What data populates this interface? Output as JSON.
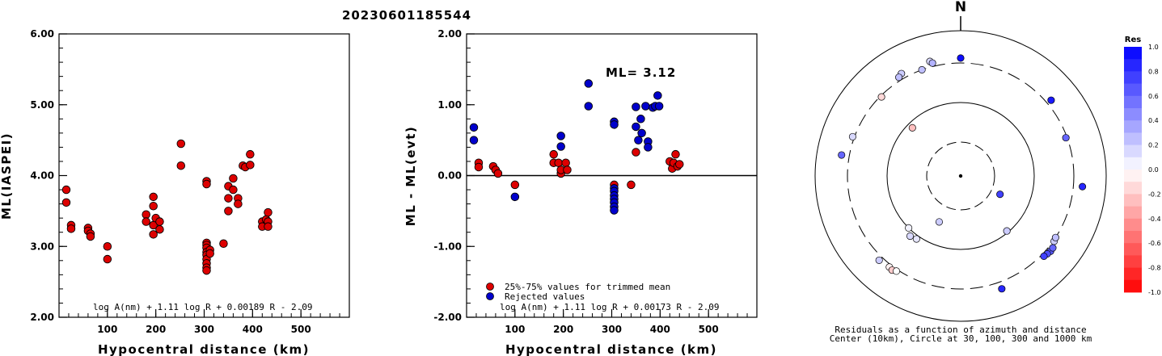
{
  "title": "20230601185544",
  "chart_data": [
    {
      "type": "scatter",
      "panel": "left",
      "xlabel": "Hypocentral distance (km)",
      "ylabel": "ML(IASPEI)",
      "xlim": [
        0,
        600
      ],
      "ylim": [
        2.0,
        6.0
      ],
      "xticks": [
        "100",
        "200",
        "300",
        "400",
        "500"
      ],
      "yticks": [
        "2.00",
        "3.00",
        "4.00",
        "5.00",
        "6.00"
      ],
      "formula": "log A(nm) + 1.11 log R + 0.00189 R - 2.09",
      "marker_color": "#dd0000",
      "points": [
        [
          15,
          3.8
        ],
        [
          15,
          3.62
        ],
        [
          25,
          3.3
        ],
        [
          25,
          3.25
        ],
        [
          60,
          3.26
        ],
        [
          60,
          3.22
        ],
        [
          65,
          3.18
        ],
        [
          65,
          3.14
        ],
        [
          100,
          3.0
        ],
        [
          100,
          2.82
        ],
        [
          180,
          3.45
        ],
        [
          180,
          3.35
        ],
        [
          195,
          3.7
        ],
        [
          195,
          3.57
        ],
        [
          195,
          3.3
        ],
        [
          195,
          3.17
        ],
        [
          200,
          3.4
        ],
        [
          208,
          3.35
        ],
        [
          208,
          3.24
        ],
        [
          252,
          4.45
        ],
        [
          252,
          4.14
        ],
        [
          305,
          3.92
        ],
        [
          305,
          3.88
        ],
        [
          305,
          3.05
        ],
        [
          305,
          3.02
        ],
        [
          305,
          2.98
        ],
        [
          305,
          2.92
        ],
        [
          305,
          2.88
        ],
        [
          305,
          2.82
        ],
        [
          305,
          2.76
        ],
        [
          305,
          2.7
        ],
        [
          305,
          2.66
        ],
        [
          312,
          2.95
        ],
        [
          312,
          2.9
        ],
        [
          340,
          3.04
        ],
        [
          350,
          3.85
        ],
        [
          350,
          3.68
        ],
        [
          350,
          3.5
        ],
        [
          360,
          3.96
        ],
        [
          360,
          3.8
        ],
        [
          370,
          3.68
        ],
        [
          370,
          3.6
        ],
        [
          380,
          4.14
        ],
        [
          385,
          4.12
        ],
        [
          395,
          4.3
        ],
        [
          395,
          4.15
        ],
        [
          420,
          3.35
        ],
        [
          420,
          3.28
        ],
        [
          428,
          3.38
        ],
        [
          432,
          3.48
        ],
        [
          432,
          3.35
        ],
        [
          432,
          3.28
        ]
      ]
    },
    {
      "type": "scatter",
      "panel": "middle",
      "xlabel": "Hypocentral distance (km)",
      "ylabel": "ML - ML(evt)",
      "xlim": [
        0,
        600
      ],
      "ylim": [
        -2.0,
        2.0
      ],
      "xticks": [
        "100",
        "200",
        "300",
        "400",
        "500"
      ],
      "yticks": [
        "-2.00",
        "-1.00",
        "0.00",
        "1.00",
        "2.00"
      ],
      "annotation": "ML= 3.12",
      "formula": "log A(nm) + 1.11 log R + 0.00173 R - 2.09",
      "legend": [
        {
          "label": "25%-75% values for trimmed mean",
          "color": "#dd0000"
        },
        {
          "label": "Rejected values",
          "color": "#0000cc"
        }
      ],
      "series": [
        {
          "name": "25%-75% values for trimmed mean",
          "color": "#dd0000",
          "points": [
            [
              25,
              0.18
            ],
            [
              25,
              0.12
            ],
            [
              55,
              0.13
            ],
            [
              60,
              0.08
            ],
            [
              65,
              0.03
            ],
            [
              100,
              -0.13
            ],
            [
              180,
              0.3
            ],
            [
              180,
              0.18
            ],
            [
              190,
              0.18
            ],
            [
              195,
              0.03
            ],
            [
              195,
              0.08
            ],
            [
              205,
              0.18
            ],
            [
              208,
              0.08
            ],
            [
              305,
              -0.13
            ],
            [
              340,
              -0.13
            ],
            [
              350,
              0.33
            ],
            [
              420,
              0.2
            ],
            [
              425,
              0.1
            ],
            [
              428,
              0.18
            ],
            [
              432,
              0.3
            ],
            [
              436,
              0.13
            ],
            [
              440,
              0.16
            ]
          ]
        },
        {
          "name": "Rejected values",
          "color": "#0000cc",
          "points": [
            [
              15,
              0.68
            ],
            [
              15,
              0.5
            ],
            [
              100,
              -0.3
            ],
            [
              195,
              0.56
            ],
            [
              195,
              0.41
            ],
            [
              252,
              1.3
            ],
            [
              252,
              0.98
            ],
            [
              305,
              0.76
            ],
            [
              305,
              0.72
            ],
            [
              305,
              -0.18
            ],
            [
              305,
              -0.22
            ],
            [
              305,
              -0.28
            ],
            [
              305,
              -0.33
            ],
            [
              305,
              -0.38
            ],
            [
              305,
              -0.44
            ],
            [
              305,
              -0.49
            ],
            [
              350,
              0.97
            ],
            [
              350,
              0.69
            ],
            [
              355,
              0.5
            ],
            [
              360,
              0.8
            ],
            [
              362,
              0.6
            ],
            [
              370,
              0.98
            ],
            [
              375,
              0.48
            ],
            [
              375,
              0.4
            ],
            [
              385,
              0.96
            ],
            [
              390,
              0.98
            ],
            [
              395,
              1.13
            ],
            [
              398,
              0.98
            ]
          ]
        }
      ]
    },
    {
      "type": "scatter",
      "panel": "right",
      "subtype": "polar residual map",
      "north_label": "N",
      "caption_line1": "Residuals as a function of azimuth and distance",
      "caption_line2": "Center (10km), Circle at 30, 100, 300 and 1000 km",
      "colorbar_title": "Res",
      "colorbar_ticks": [
        "1.0",
        "0.8",
        "0.6",
        "0.4",
        "0.2",
        "0.0",
        "-0.2",
        "-0.4",
        "-0.6",
        "-0.8",
        "-1.0"
      ],
      "rings_km": [
        30,
        100,
        300,
        1000
      ],
      "stations": [
        {
          "az": 0,
          "dist": 360,
          "res": 0.95
        },
        {
          "az": 345,
          "dist": 370,
          "res": 0.15
        },
        {
          "az": 346,
          "dist": 340,
          "res": 0.3
        },
        {
          "az": 340,
          "dist": 300,
          "res": 0.25
        },
        {
          "az": 330,
          "dist": 365,
          "res": 0.2
        },
        {
          "az": 328,
          "dist": 340,
          "res": 0.25
        },
        {
          "az": 315,
          "dist": 290,
          "res": -0.15
        },
        {
          "az": 315,
          "dist": 85,
          "res": -0.25
        },
        {
          "az": 50,
          "dist": 360,
          "res": 0.9
        },
        {
          "az": 70,
          "dist": 290,
          "res": 0.6
        },
        {
          "az": 290,
          "dist": 320,
          "res": 0.15
        },
        {
          "az": 280,
          "dist": 400,
          "res": 0.6
        },
        {
          "az": 115,
          "dist": 40,
          "res": 0.75
        },
        {
          "az": 140,
          "dist": 95,
          "res": 0.2
        },
        {
          "az": 225,
          "dist": 100,
          "res": 0.05
        },
        {
          "az": 215,
          "dist": 110,
          "res": 0.1
        },
        {
          "az": 220,
          "dist": 115,
          "res": 0.15
        },
        {
          "az": 205,
          "dist": 50,
          "res": 0.2
        },
        {
          "az": 95,
          "dist": 420,
          "res": 0.85
        },
        {
          "az": 125,
          "dist": 310,
          "res": 0.2
        },
        {
          "az": 123,
          "dist": 300,
          "res": 0.25
        },
        {
          "az": 130,
          "dist": 350,
          "res": 0.65
        },
        {
          "az": 132,
          "dist": 340,
          "res": 0.7
        },
        {
          "az": 134,
          "dist": 330,
          "res": 0.75
        },
        {
          "az": 128,
          "dist": 345,
          "res": 0.6
        },
        {
          "az": 160,
          "dist": 390,
          "res": 0.85
        },
        {
          "az": 218,
          "dist": 330,
          "res": -0.05
        },
        {
          "az": 216,
          "dist": 340,
          "res": -0.2
        },
        {
          "az": 214,
          "dist": 320,
          "res": 0.0
        },
        {
          "az": 224,
          "dist": 350,
          "res": 0.2
        }
      ]
    }
  ]
}
